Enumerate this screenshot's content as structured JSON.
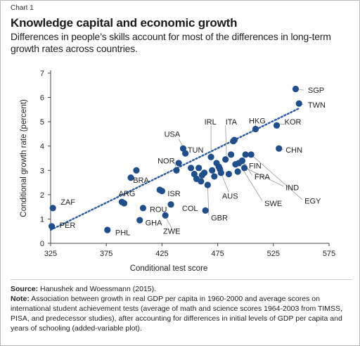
{
  "header": {
    "chart_label": "Chart 1",
    "title": "Knowledge capital and economic growth",
    "subtitle": "Differences in people’s skills account for most of the differences in long-term growth rates across countries."
  },
  "footer": {
    "source_label": "Source:",
    "source_text": "Hanushek and Woessmann (2015).",
    "note_label": "Note:",
    "note_text": "Association between growth in real GDP per capita in 1960-2000 and average scores on international student achievement tests (average of math and science scores 1964-2003 from TIMSS, PISA, and predecessor studies), after accounting for differences in initial levels of GDP per capita and years of schooling (added-variable plot)."
  },
  "colors": {
    "point": "#1f4e8c",
    "trend": "#2a5aa6",
    "leader": "#999999",
    "text": "#222222"
  },
  "chart_data": {
    "type": "scatter",
    "xlabel": "Conditional test score",
    "ylabel": "Conditional growth rate (percent)",
    "xlim": [
      325,
      575
    ],
    "ylim": [
      0,
      7
    ],
    "xticks": [
      325,
      375,
      425,
      475,
      525,
      575
    ],
    "yticks": [
      0,
      1,
      2,
      3,
      4,
      5,
      6,
      7
    ],
    "grid": false,
    "trendline": {
      "style": "dotted",
      "from": [
        325,
        0.55
      ],
      "to": [
        548,
        5.55
      ]
    },
    "points": [
      {
        "label": "ZAF",
        "x": 327,
        "y": 1.45
      },
      {
        "label": "PER",
        "x": 326,
        "y": 0.7
      },
      {
        "label": "PHL",
        "x": 376,
        "y": 0.55
      },
      {
        "label": "ARG",
        "x": 389,
        "y": 1.7
      },
      {
        "label": "",
        "x": 391,
        "y": 1.65
      },
      {
        "label": "BRA",
        "x": 397,
        "y": 2.7
      },
      {
        "label": "",
        "x": 402,
        "y": 3.0
      },
      {
        "label": "GHA",
        "x": 405,
        "y": 0.95
      },
      {
        "label": "ROU",
        "x": 408,
        "y": 1.45
      },
      {
        "label": "ISR",
        "x": 425,
        "y": 2.15
      },
      {
        "label": "",
        "x": 423,
        "y": 2.2
      },
      {
        "label": "ZWE",
        "x": 428,
        "y": 1.15
      },
      {
        "label": "COL",
        "x": 433,
        "y": 1.6
      },
      {
        "label": "NOR",
        "x": 438,
        "y": 3.0
      },
      {
        "label": "USA",
        "x": 444,
        "y": 3.9
      },
      {
        "label": "TUN",
        "x": 446,
        "y": 3.7
      },
      {
        "label": "",
        "x": 440,
        "y": 3.3
      },
      {
        "label": "",
        "x": 451,
        "y": 3.1
      },
      {
        "label": "",
        "x": 454,
        "y": 2.85
      },
      {
        "label": "",
        "x": 456,
        "y": 2.65
      },
      {
        "label": "",
        "x": 458,
        "y": 3.1
      },
      {
        "label": "",
        "x": 460,
        "y": 2.55
      },
      {
        "label": "",
        "x": 461,
        "y": 2.8
      },
      {
        "label": "",
        "x": 463,
        "y": 2.9
      },
      {
        "label": "GBR",
        "x": 464,
        "y": 1.35
      },
      {
        "label": "",
        "x": 466,
        "y": 2.4
      },
      {
        "label": "IRL",
        "x": 469,
        "y": 3.55
      },
      {
        "label": "",
        "x": 470,
        "y": 3.0
      },
      {
        "label": "",
        "x": 472,
        "y": 2.75
      },
      {
        "label": "",
        "x": 474,
        "y": 3.3
      },
      {
        "label": "",
        "x": 476,
        "y": 3.15
      },
      {
        "label": "",
        "x": 477,
        "y": 3.05
      },
      {
        "label": "",
        "x": 478,
        "y": 2.9
      },
      {
        "label": "ITA",
        "x": 482,
        "y": 3.45
      },
      {
        "label": "AUS",
        "x": 485,
        "y": 2.85
      },
      {
        "label": "",
        "x": 487,
        "y": 3.65
      },
      {
        "label": "",
        "x": 489,
        "y": 4.2
      },
      {
        "label": "",
        "x": 490,
        "y": 4.25
      },
      {
        "label": "FIN",
        "x": 491,
        "y": 3.25
      },
      {
        "label": "",
        "x": 493,
        "y": 2.95
      },
      {
        "label": "SWE",
        "x": 494,
        "y": 3.3
      },
      {
        "label": "FRA",
        "x": 497,
        "y": 3.4
      },
      {
        "label": "",
        "x": 500,
        "y": 3.65
      },
      {
        "label": "HKG",
        "x": 509,
        "y": 4.7
      },
      {
        "label": "IND",
        "x": 505,
        "y": 3.65
      },
      {
        "label": "EGY",
        "x": 499,
        "y": 3.1
      },
      {
        "label": "CHN",
        "x": 530,
        "y": 3.9
      },
      {
        "label": "KOR",
        "x": 528,
        "y": 4.85
      },
      {
        "label": "SGP",
        "x": 545,
        "y": 6.35
      },
      {
        "label": "TWN",
        "x": 548,
        "y": 5.75
      }
    ],
    "labels": [
      {
        "text": "ZAF",
        "x": 334,
        "y": 1.7
      },
      {
        "text": "PER",
        "x": 333,
        "y": 0.75
      },
      {
        "text": "PHL",
        "x": 383,
        "y": 0.45
      },
      {
        "text": "ARG",
        "x": 386,
        "y": 2.05
      },
      {
        "text": "BRA",
        "x": 399,
        "y": 2.6
      },
      {
        "text": "GHA",
        "x": 410,
        "y": 0.85
      },
      {
        "text": "ROU",
        "x": 414,
        "y": 1.4
      },
      {
        "text": "ISR",
        "x": 430,
        "y": 2.05
      },
      {
        "text": "ZWE",
        "x": 426,
        "y": 0.5
      },
      {
        "text": "COL",
        "x": 443,
        "y": 1.45
      },
      {
        "text": "NOR",
        "x": 421,
        "y": 3.4
      },
      {
        "text": "USA",
        "x": 427,
        "y": 4.5
      },
      {
        "text": "TUN",
        "x": 448,
        "y": 3.85
      },
      {
        "text": "GBR",
        "x": 469,
        "y": 1.05
      },
      {
        "text": "IRL",
        "x": 463,
        "y": 5.0
      },
      {
        "text": "ITA",
        "x": 482,
        "y": 5.0
      },
      {
        "text": "HKG",
        "x": 503,
        "y": 5.05
      },
      {
        "text": "KOR",
        "x": 535,
        "y": 5.0
      },
      {
        "text": "SGP",
        "x": 556,
        "y": 6.3
      },
      {
        "text": "TWN",
        "x": 556,
        "y": 5.7
      },
      {
        "text": "CHN",
        "x": 536,
        "y": 3.85
      },
      {
        "text": "FIN",
        "x": 503,
        "y": 3.2
      },
      {
        "text": "FRA",
        "x": 508,
        "y": 2.75
      },
      {
        "text": "IND",
        "x": 536,
        "y": 2.3
      },
      {
        "text": "AUS",
        "x": 479,
        "y": 1.95
      },
      {
        "text": "SWE",
        "x": 517,
        "y": 1.65
      },
      {
        "text": "EGY",
        "x": 553,
        "y": 1.75
      }
    ],
    "leaders": [
      {
        "from": [
          469,
          4.85
        ],
        "to": [
          469,
          3.6
        ]
      },
      {
        "from": [
          482,
          4.85
        ],
        "to": [
          483,
          3.5
        ]
      },
      {
        "from": [
          509,
          4.9
        ],
        "to": [
          509,
          4.75
        ]
      },
      {
        "from": [
          535,
          4.9
        ],
        "to": [
          529,
          4.9
        ]
      },
      {
        "from": [
          552,
          6.3
        ],
        "to": [
          546,
          6.35
        ]
      },
      {
        "from": [
          552,
          5.7
        ],
        "to": [
          549,
          5.75
        ]
      },
      {
        "from": [
          534,
          3.85
        ],
        "to": [
          531,
          3.9
        ]
      },
      {
        "from": [
          501,
          3.25
        ],
        "to": [
          492,
          3.25
        ]
      },
      {
        "from": [
          506,
          2.8
        ],
        "to": [
          497,
          3.4
        ]
      },
      {
        "from": [
          534,
          2.35
        ],
        "to": [
          500,
          3.1
        ]
      },
      {
        "from": [
          485,
          2.1
        ],
        "to": [
          478,
          2.9
        ]
      },
      {
        "from": [
          515,
          1.75
        ],
        "to": [
          494,
          3.3
        ]
      },
      {
        "from": [
          551,
          1.8
        ],
        "to": [
          505,
          3.65
        ]
      },
      {
        "from": [
          467,
          1.15
        ],
        "to": [
          466,
          2.4
        ]
      },
      {
        "from": [
          434,
          0.6
        ],
        "to": [
          428,
          1.1
        ]
      },
      {
        "from": [
          436,
          3.35
        ],
        "to": [
          438,
          3.05
        ]
      },
      {
        "from": [
          440,
          4.3
        ],
        "to": [
          444,
          3.95
        ]
      }
    ]
  }
}
